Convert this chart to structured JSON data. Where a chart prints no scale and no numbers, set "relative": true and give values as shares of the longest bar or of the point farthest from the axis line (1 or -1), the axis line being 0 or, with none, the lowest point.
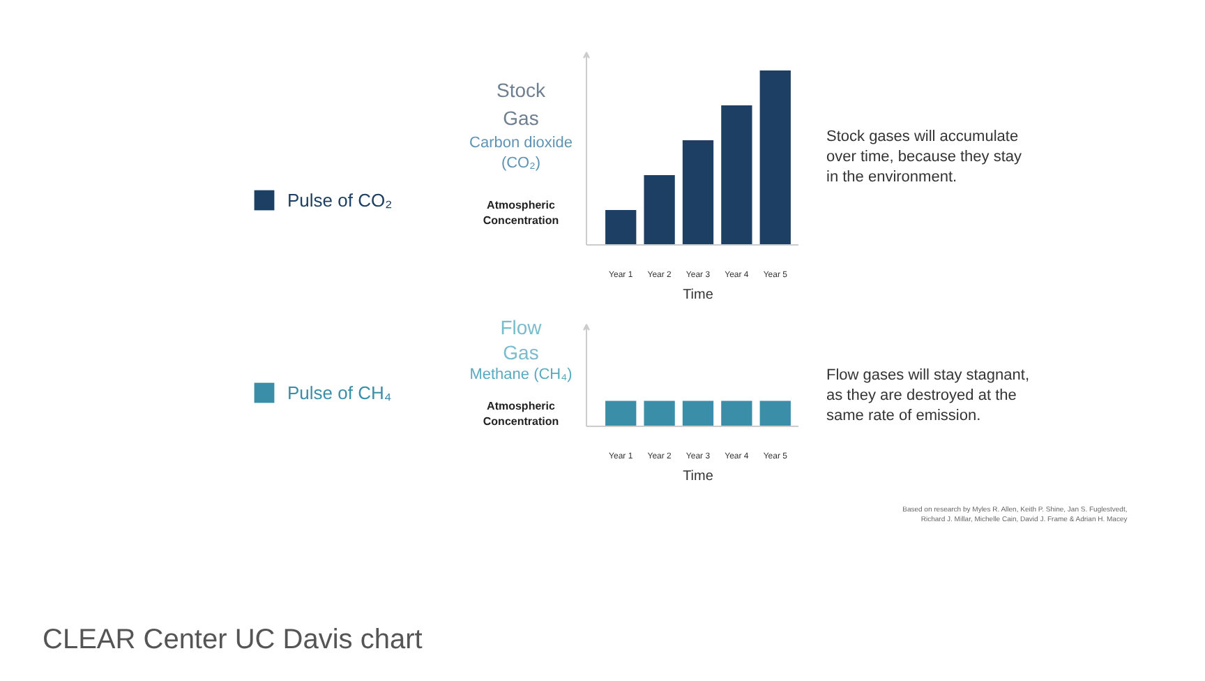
{
  "chart_data": [
    {
      "type": "bar",
      "title": "Stock Gas",
      "subtitle": "Carbon dioxide (CO₂)",
      "ylabel": "Atmospheric Concentration",
      "xlabel": "Time",
      "categories": [
        "Year 1",
        "Year 2",
        "Year 3",
        "Year 4",
        "Year 5"
      ],
      "relative": true,
      "legend": "left",
      "series": [
        {
          "name": "Pulse of CO₂",
          "color": "#1d3f63",
          "values": [
            0.2,
            0.4,
            0.6,
            0.8,
            1
          ]
        }
      ],
      "annotations": [
        "Stock gases will accumulate\nover time, because they stay\nin the environment."
      ]
    },
    {
      "type": "bar",
      "title": "Flow Gas",
      "subtitle": "Methane (CH₄)",
      "ylabel": "Atmospheric Concentration",
      "xlabel": "Time",
      "categories": [
        "Year 1",
        "Year 2",
        "Year 3",
        "Year 4",
        "Year 5"
      ],
      "relative": true,
      "legend": "left",
      "series": [
        {
          "name": "Pulse of CH₄",
          "color": "#3a8ea8",
          "values": [
            1,
            1,
            1,
            1,
            1
          ]
        }
      ],
      "annotations": [
        "Flow gases will stay stagnant,\nas they are destroyed at the\nsame rate of emission.",
        "Based on research by Myles R. Allen, Keith P. Shine, Jan S. Fuglestvedt,\nRichard J. Millar, Michelle Cain, David J. Frame & Adrian H. Macey",
        "CLEAR Center UC Davis chart"
      ]
    }
  ]
}
